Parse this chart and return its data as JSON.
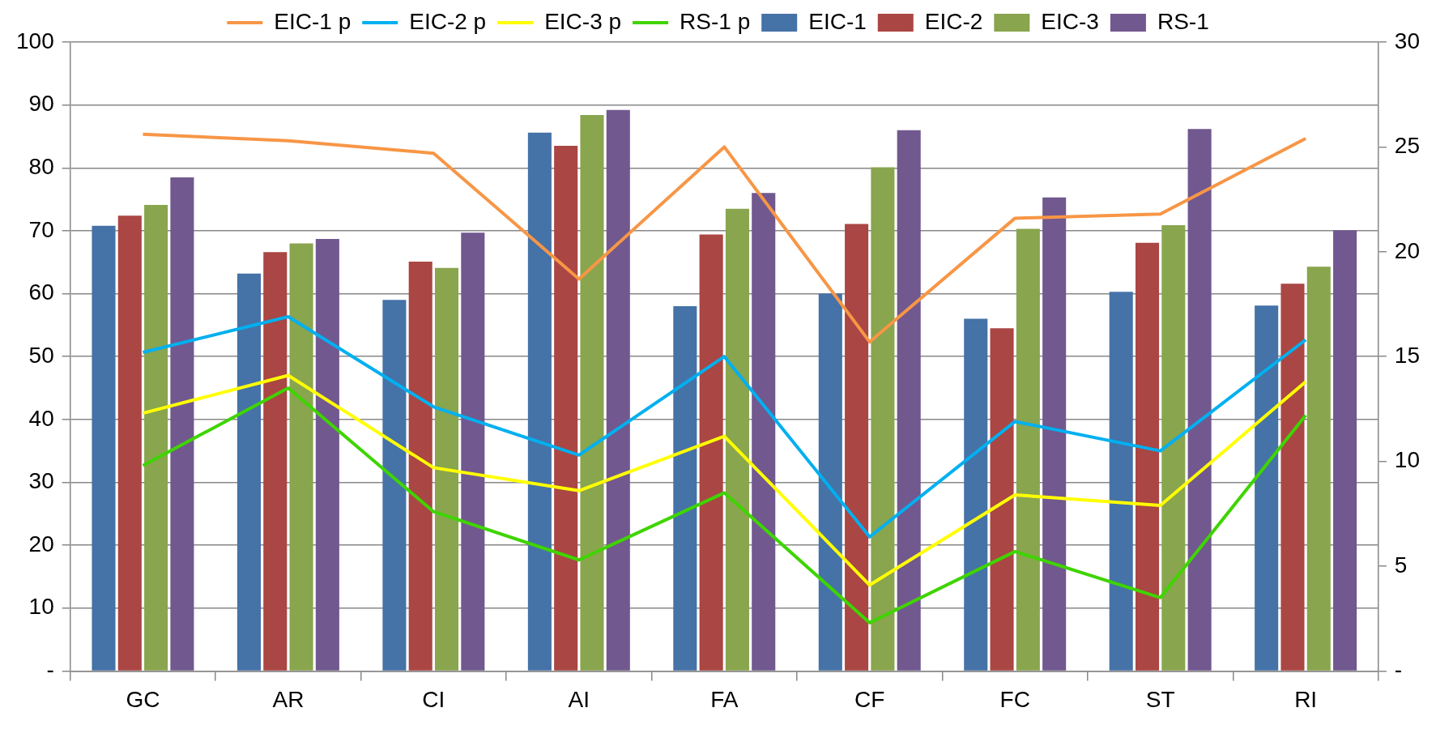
{
  "chart_data": {
    "type": "bar",
    "categories": [
      "GC",
      "AR",
      "CI",
      "AI",
      "FA",
      "CF",
      "FC",
      "ST",
      "RI"
    ],
    "series": [
      {
        "name": "EIC-1",
        "color": "#4572a7",
        "values": [
          70.8,
          63.2,
          59,
          85.6,
          58,
          60,
          56,
          60.3,
          58.1
        ]
      },
      {
        "name": "EIC-2",
        "color": "#aa4643",
        "values": [
          72.4,
          66.6,
          65.1,
          83.5,
          69.4,
          71.1,
          54.5,
          68.1,
          61.6
        ]
      },
      {
        "name": "EIC-3",
        "color": "#89a54e",
        "values": [
          74.1,
          68,
          64.1,
          88.4,
          73.5,
          80.1,
          70.3,
          70.9,
          64.3
        ]
      },
      {
        "name": "RS-1",
        "color": "#71588f",
        "values": [
          78.5,
          68.7,
          69.7,
          89.2,
          76,
          86,
          75.3,
          86.2,
          70.1
        ]
      },
      {
        "name": "EIC-1 p",
        "type": "line",
        "axis": "y2",
        "color": "#f79646",
        "values": [
          25.6,
          25.3,
          24.7,
          18.7,
          25.0,
          15.7,
          21.6,
          21.8,
          25.4
        ]
      },
      {
        "name": "EIC-2 p",
        "type": "line",
        "axis": "y2",
        "color": "#00b0f0",
        "values": [
          15.2,
          16.9,
          12.6,
          10.3,
          15.0,
          6.4,
          11.9,
          10.5,
          15.8
        ]
      },
      {
        "name": "EIC-3 p",
        "type": "line",
        "axis": "y2",
        "color": "#ffff00",
        "values": [
          12.3,
          14.1,
          9.7,
          8.6,
          11.2,
          4.1,
          8.4,
          7.9,
          13.8
        ]
      },
      {
        "name": "RS-1 p",
        "type": "line",
        "axis": "y2",
        "color": "#3fd400",
        "values": [
          9.8,
          13.5,
          7.6,
          5.3,
          8.5,
          2.3,
          5.7,
          3.5,
          12.2
        ]
      }
    ],
    "ylim": [
      0,
      100
    ],
    "yticks": [
      {
        "value": 0,
        "label": "-"
      },
      10,
      20,
      30,
      40,
      50,
      60,
      70,
      80,
      90,
      100
    ],
    "y2lim": [
      0,
      30
    ],
    "y2ticks": [
      {
        "value": 0,
        "label": "-"
      },
      5,
      10,
      15,
      20,
      25,
      30
    ],
    "grid": "y",
    "legend": "top",
    "marker": "none",
    "line_style": "solid"
  }
}
